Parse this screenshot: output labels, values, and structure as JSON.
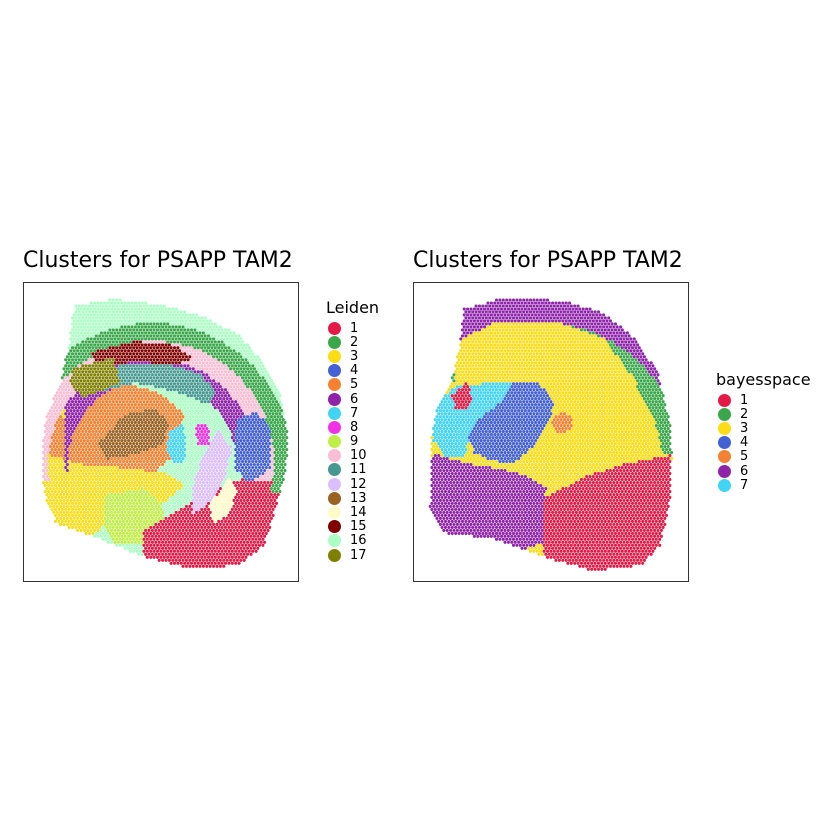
{
  "chart_data": [
    {
      "type": "scatter",
      "title": "Clusters for PSAPP TAM2",
      "legend_title": "Leiden",
      "legend_position": "right",
      "grid": false,
      "axes": false,
      "clusters": [
        {
          "label": "1",
          "color": "#e31a45"
        },
        {
          "label": "2",
          "color": "#3aa84a"
        },
        {
          "label": "3",
          "color": "#fbdc15"
        },
        {
          "label": "4",
          "color": "#4360d4"
        },
        {
          "label": "5",
          "color": "#f58231"
        },
        {
          "label": "6",
          "color": "#8e24aa"
        },
        {
          "label": "7",
          "color": "#42d4f4"
        },
        {
          "label": "8",
          "color": "#f032e6"
        },
        {
          "label": "9",
          "color": "#bfef45"
        },
        {
          "label": "10",
          "color": "#fabed4"
        },
        {
          "label": "11",
          "color": "#469990"
        },
        {
          "label": "12",
          "color": "#dcbeff"
        },
        {
          "label": "13",
          "color": "#9a6324"
        },
        {
          "label": "14",
          "color": "#fffac8"
        },
        {
          "label": "15",
          "color": "#800000"
        },
        {
          "label": "16",
          "color": "#aaffc3"
        },
        {
          "label": "17",
          "color": "#808000"
        }
      ]
    },
    {
      "type": "scatter",
      "title": "Clusters for PSAPP TAM2",
      "legend_title": "bayesspace",
      "legend_position": "right",
      "grid": false,
      "axes": false,
      "clusters": [
        {
          "label": "1",
          "color": "#e31a45"
        },
        {
          "label": "2",
          "color": "#3aa84a"
        },
        {
          "label": "3",
          "color": "#fbdc15"
        },
        {
          "label": "4",
          "color": "#4360d4"
        },
        {
          "label": "5",
          "color": "#f58231"
        },
        {
          "label": "6",
          "color": "#8e24aa"
        },
        {
          "label": "7",
          "color": "#42d4f4"
        }
      ]
    }
  ]
}
